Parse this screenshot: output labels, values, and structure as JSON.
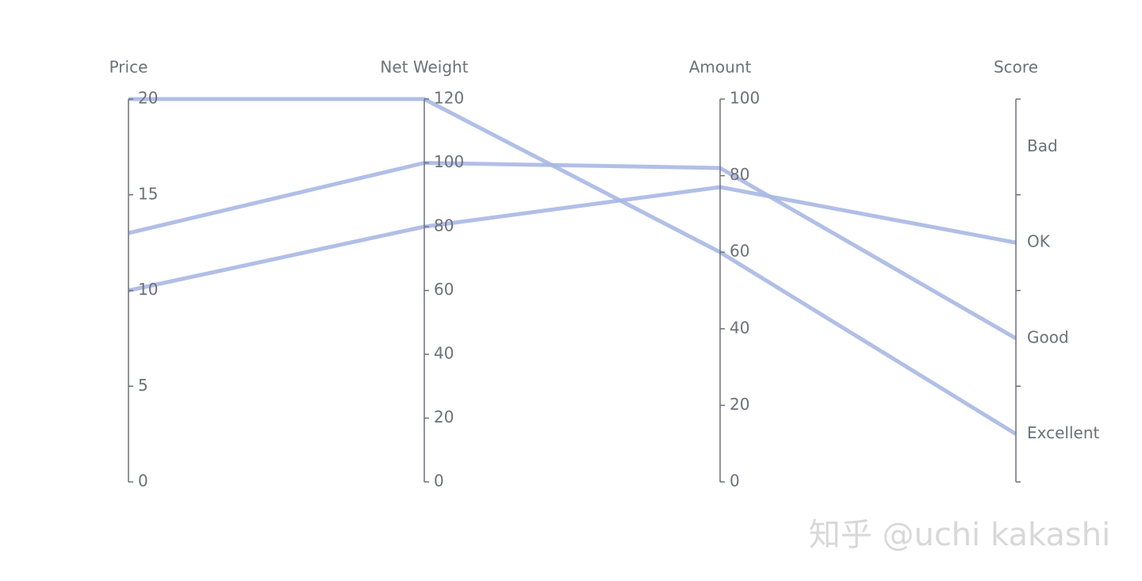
{
  "chart_data": {
    "type": "parallel",
    "axes": [
      {
        "name": "Price",
        "ylim": [
          0,
          20
        ],
        "yticks": [
          0,
          5,
          10,
          15,
          20
        ]
      },
      {
        "name": "Net Weight",
        "ylim": [
          0,
          120
        ],
        "yticks": [
          0,
          20,
          40,
          60,
          80,
          100,
          120
        ]
      },
      {
        "name": "Amount",
        "ylim": [
          0,
          100
        ],
        "yticks": [
          0,
          20,
          40,
          60,
          80,
          100
        ]
      },
      {
        "name": "Score",
        "categories": [
          "Excellent",
          "Good",
          "OK",
          "Bad"
        ]
      }
    ],
    "series": [
      {
        "color": "#a9b8e4",
        "values": [
          13,
          100,
          82,
          "Good"
        ]
      },
      {
        "color": "#a9b8e4",
        "values": [
          10,
          80,
          77,
          "OK"
        ]
      },
      {
        "color": "#a9b8e4",
        "values": [
          20,
          120,
          60,
          "Excellent"
        ]
      }
    ],
    "watermark": "知乎 @uchi kakashi"
  }
}
